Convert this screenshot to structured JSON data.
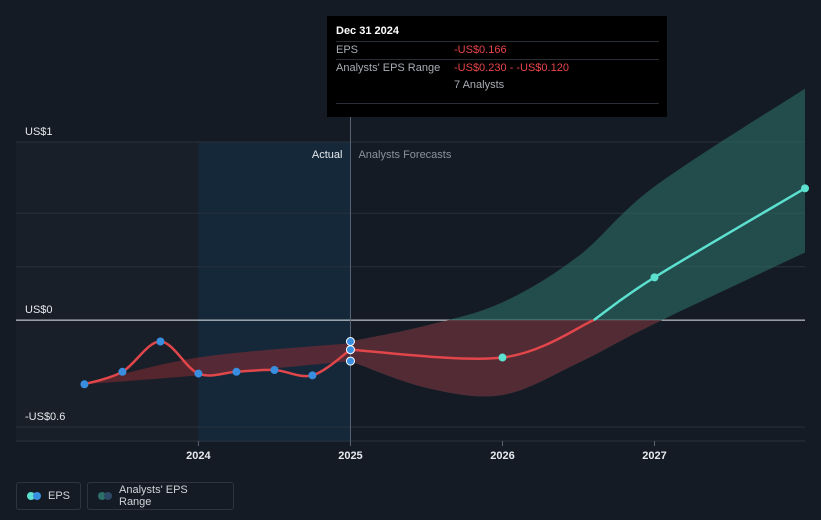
{
  "tooltip": {
    "date": "Dec 31 2024",
    "eps_label": "EPS",
    "eps_value": "-US$0.166",
    "range_label": "Analysts' EPS Range",
    "range_value": "-US$0.230 - -US$0.120",
    "analysts": "7 Analysts"
  },
  "labels": {
    "actual": "Actual",
    "forecast": "Analysts Forecasts"
  },
  "legend": {
    "eps": "EPS",
    "range": "Analysts' EPS Range"
  },
  "colors": {
    "eps_actual": "#e0464a",
    "eps_forecast": "#5ce0d0",
    "point_actual": "#3a8ee0",
    "range_actual": "#8a2c33",
    "range_forecast": "#2d6e68",
    "background": "#151b24"
  },
  "chart_data": {
    "type": "line",
    "y_ticks": [
      {
        "value": 1,
        "label": "US$1"
      },
      {
        "value": 0,
        "label": "US$0"
      },
      {
        "value": -0.6,
        "label": "-US$0.6"
      }
    ],
    "x_ticks": [
      {
        "value": 2024,
        "label": "2024"
      },
      {
        "value": 2025,
        "label": "2025"
      },
      {
        "value": 2026,
        "label": "2026"
      },
      {
        "value": 2027,
        "label": "2027"
      }
    ],
    "ylim": [
      -0.6,
      1
    ],
    "xlim": [
      2022.8,
      2027.99
    ],
    "series": [
      {
        "name": "EPS",
        "kind": "actual",
        "points": [
          [
            2023.25,
            -0.36
          ],
          [
            2023.5,
            -0.29
          ],
          [
            2023.75,
            -0.12
          ],
          [
            2024.0,
            -0.3
          ],
          [
            2024.25,
            -0.29
          ],
          [
            2024.5,
            -0.28
          ],
          [
            2024.75,
            -0.31
          ],
          [
            2025.0,
            -0.166
          ]
        ]
      },
      {
        "name": "EPS",
        "kind": "forecast",
        "points": [
          [
            2025.0,
            -0.166
          ],
          [
            2026.0,
            -0.21
          ],
          [
            2026.6,
            0.0
          ],
          [
            2027.0,
            0.24
          ],
          [
            2027.99,
            0.74
          ]
        ]
      }
    ],
    "markers_2025": [
      -0.12,
      -0.166,
      -0.23
    ],
    "range_actual": {
      "upper": [
        [
          2023.25,
          -0.36
        ],
        [
          2024.0,
          -0.21
        ],
        [
          2025.0,
          -0.13
        ]
      ],
      "lower": [
        [
          2025.0,
          -0.23
        ],
        [
          2024.0,
          -0.31
        ],
        [
          2023.25,
          -0.36
        ]
      ]
    },
    "range_forecast": {
      "upper": [
        [
          2025.0,
          -0.12
        ],
        [
          2025.5,
          -0.03
        ],
        [
          2026.0,
          0.1
        ],
        [
          2026.5,
          0.36
        ],
        [
          2027.0,
          0.75
        ],
        [
          2027.99,
          1.3
        ]
      ],
      "lower": [
        [
          2027.99,
          0.38
        ],
        [
          2027.0,
          -0.02
        ],
        [
          2026.5,
          -0.24
        ],
        [
          2026.0,
          -0.42
        ],
        [
          2025.5,
          -0.38
        ],
        [
          2025.0,
          -0.23
        ]
      ]
    },
    "legend_placement": "bottom-left"
  }
}
